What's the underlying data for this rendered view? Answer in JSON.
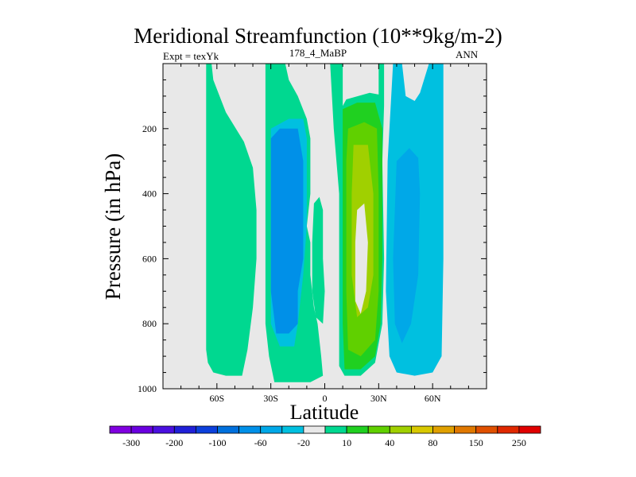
{
  "chart_data": {
    "type": "contour",
    "title": "Meridional Streamfunction (10**9kg/m-2)",
    "left_subtitle": "Expt = texYk",
    "center_subtitle": "178_4_MaBP",
    "right_subtitle": "ANN",
    "xlabel": "Latitude",
    "ylabel": "Pressure (in hPa)",
    "x_range": [
      -90,
      90
    ],
    "y_range": [
      1000,
      0
    ],
    "x_ticks": [
      {
        "value": -60,
        "label": "60S"
      },
      {
        "value": -30,
        "label": "30S"
      },
      {
        "value": 0,
        "label": "0"
      },
      {
        "value": 30,
        "label": "30N"
      },
      {
        "value": 60,
        "label": "60N"
      }
    ],
    "y_ticks": [
      {
        "value": 200,
        "label": "200"
      },
      {
        "value": 400,
        "label": "400"
      },
      {
        "value": 600,
        "label": "600"
      },
      {
        "value": 800,
        "label": "800"
      },
      {
        "value": 1000,
        "label": "1000"
      }
    ],
    "background_color": "#e8e8e8",
    "colorbar": {
      "colors": [
        "#8000e0",
        "#6a00e0",
        "#4a10e0",
        "#2020d8",
        "#0c40dc",
        "#0070dd",
        "#0090e8",
        "#00a8e8",
        "#00c0e0",
        "#e8e8e8",
        "#00d890",
        "#20d020",
        "#60d000",
        "#a0d000",
        "#d8c800",
        "#e0a000",
        "#e07800",
        "#e05000",
        "#e02800",
        "#e00000"
      ],
      "labels": [
        "-300",
        "-200",
        "-100",
        "-60",
        "-20",
        "10",
        "40",
        "80",
        "150",
        "250"
      ]
    },
    "regions": [
      {
        "color_index": 10,
        "polygon": [
          [
            -66,
            0
          ],
          [
            -63,
            0
          ],
          [
            -62,
            50
          ],
          [
            -55,
            150
          ],
          [
            -45,
            240
          ],
          [
            -40,
            320
          ],
          [
            -38,
            450
          ],
          [
            -38,
            600
          ],
          [
            -40,
            750
          ],
          [
            -43,
            880
          ],
          [
            -46,
            960
          ],
          [
            -55,
            960
          ],
          [
            -62,
            950
          ],
          [
            -65,
            920
          ],
          [
            -66,
            880
          ],
          [
            -66,
            0
          ]
        ]
      },
      {
        "color_index": 10,
        "polygon": [
          [
            -33,
            0
          ],
          [
            -22,
            0
          ],
          [
            -20,
            50
          ],
          [
            -15,
            100
          ],
          [
            -10,
            170
          ],
          [
            -8,
            230
          ],
          [
            -8,
            400
          ],
          [
            -10,
            500
          ],
          [
            -8,
            550
          ],
          [
            -8,
            650
          ],
          [
            -6,
            750
          ],
          [
            -4,
            800
          ],
          [
            -2,
            900
          ],
          [
            -1,
            960
          ],
          [
            -8,
            980
          ],
          [
            -28,
            980
          ],
          [
            -31,
            900
          ],
          [
            -33,
            800
          ],
          [
            -33,
            0
          ]
        ]
      },
      {
        "color_index": 8,
        "polygon": [
          [
            -30,
            200
          ],
          [
            -20,
            170
          ],
          [
            -12,
            170
          ],
          [
            -10,
            230
          ],
          [
            -10,
            500
          ],
          [
            -12,
            650
          ],
          [
            -15,
            800
          ],
          [
            -17,
            870
          ],
          [
            -25,
            870
          ],
          [
            -30,
            800
          ],
          [
            -30,
            200
          ]
        ]
      },
      {
        "color_index": 6,
        "polygon": [
          [
            -30,
            230
          ],
          [
            -25,
            200
          ],
          [
            -15,
            200
          ],
          [
            -12,
            300
          ],
          [
            -12,
            600
          ],
          [
            -15,
            700
          ],
          [
            -15,
            800
          ],
          [
            -20,
            830
          ],
          [
            -27,
            830
          ],
          [
            -30,
            700
          ],
          [
            -30,
            230
          ]
        ]
      },
      {
        "color_index": 10,
        "polygon": [
          [
            -6,
            430
          ],
          [
            -3,
            410
          ],
          [
            -1,
            450
          ],
          [
            -1,
            600
          ],
          [
            0,
            700
          ],
          [
            -1,
            800
          ],
          [
            -5,
            780
          ],
          [
            -7,
            700
          ],
          [
            -7,
            550
          ],
          [
            -6,
            430
          ]
        ]
      },
      {
        "color_index": 10,
        "polygon": [
          [
            3,
            0
          ],
          [
            10,
            0
          ],
          [
            10,
            130
          ],
          [
            12,
            110
          ],
          [
            25,
            90
          ],
          [
            30,
            95
          ],
          [
            30,
            0
          ],
          [
            33,
            0
          ],
          [
            33,
            130
          ],
          [
            32,
            300
          ],
          [
            33,
            600
          ],
          [
            32,
            800
          ],
          [
            28,
            920
          ],
          [
            20,
            960
          ],
          [
            11,
            960
          ],
          [
            8,
            930
          ],
          [
            8,
            400
          ],
          [
            5,
            200
          ],
          [
            3,
            0
          ]
        ]
      },
      {
        "color_index": 11,
        "polygon": [
          [
            10,
            140
          ],
          [
            18,
            120
          ],
          [
            28,
            120
          ],
          [
            32,
            200
          ],
          [
            32,
            600
          ],
          [
            31,
            800
          ],
          [
            28,
            900
          ],
          [
            20,
            940
          ],
          [
            11,
            940
          ],
          [
            10,
            800
          ],
          [
            10,
            140
          ]
        ]
      },
      {
        "color_index": 12,
        "polygon": [
          [
            13,
            200
          ],
          [
            22,
            180
          ],
          [
            29,
            200
          ],
          [
            30,
            400
          ],
          [
            30,
            700
          ],
          [
            28,
            850
          ],
          [
            20,
            900
          ],
          [
            13,
            880
          ],
          [
            12,
            700
          ],
          [
            12,
            300
          ],
          [
            13,
            200
          ]
        ]
      },
      {
        "color_index": 13,
        "polygon": [
          [
            16,
            250
          ],
          [
            24,
            250
          ],
          [
            27,
            400
          ],
          [
            27,
            650
          ],
          [
            24,
            750
          ],
          [
            18,
            780
          ],
          [
            15,
            650
          ],
          [
            15,
            400
          ],
          [
            16,
            250
          ]
        ]
      },
      {
        "color_index": 9,
        "polygon": [
          [
            18,
            450
          ],
          [
            22,
            430
          ],
          [
            24,
            550
          ],
          [
            23,
            700
          ],
          [
            20,
            770
          ],
          [
            17,
            730
          ],
          [
            17,
            550
          ],
          [
            18,
            450
          ]
        ]
      },
      {
        "color_index": 8,
        "polygon": [
          [
            38,
            0
          ],
          [
            43,
            0
          ],
          [
            45,
            100
          ],
          [
            50,
            115
          ],
          [
            53,
            90
          ],
          [
            58,
            0
          ],
          [
            66,
            0
          ],
          [
            66,
            600
          ],
          [
            65,
            900
          ],
          [
            60,
            950
          ],
          [
            50,
            960
          ],
          [
            40,
            950
          ],
          [
            36,
            900
          ],
          [
            34,
            700
          ],
          [
            35,
            300
          ],
          [
            38,
            0
          ]
        ]
      },
      {
        "color_index": 7,
        "polygon": [
          [
            40,
            300
          ],
          [
            47,
            260
          ],
          [
            52,
            290
          ],
          [
            53,
            400
          ],
          [
            52,
            650
          ],
          [
            48,
            800
          ],
          [
            43,
            860
          ],
          [
            39,
            800
          ],
          [
            38,
            600
          ],
          [
            40,
            300
          ]
        ]
      }
    ]
  }
}
